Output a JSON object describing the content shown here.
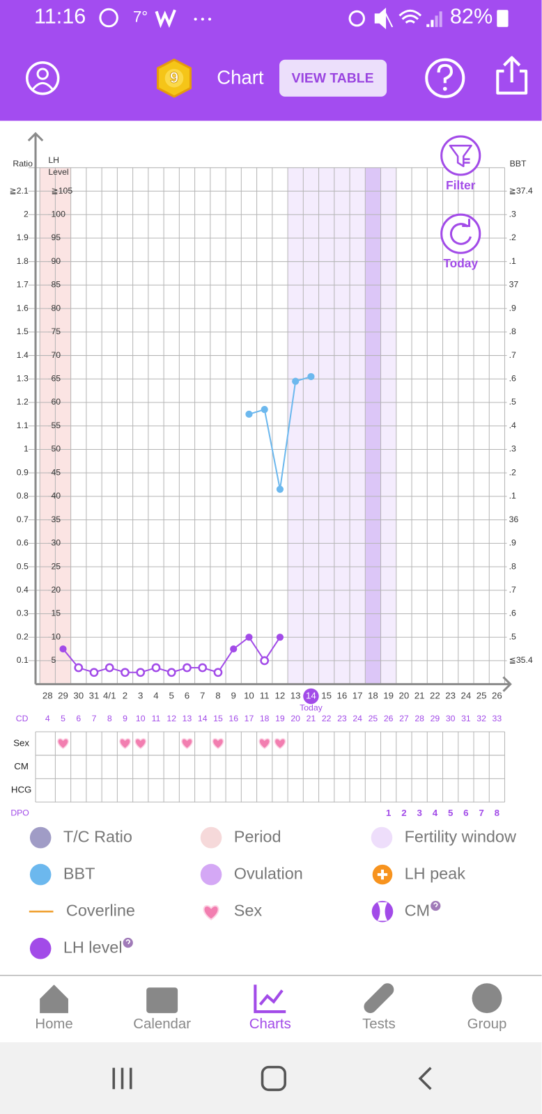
{
  "status": {
    "time": "11:16",
    "temp": "7°",
    "battery": "82%"
  },
  "header": {
    "badge": "9",
    "title": "Chart",
    "button": "VIEW TABLE"
  },
  "chart": {
    "type": "line",
    "buttons": [
      "Filter",
      "Today"
    ],
    "y_label": "Ratio",
    "y3_label": [
      "LH",
      "Level"
    ],
    "y2_label": "BBT",
    "ylim": [
      0,
      2.2
    ],
    "yticks": [
      {
        "value": 2.1,
        "label": "≧2.1"
      },
      2,
      1.9,
      1.8,
      1.7,
      1.6,
      1.5,
      1.4,
      1.3,
      1.2,
      1.1,
      1,
      0.9,
      0.8,
      0.7,
      0.6,
      0.5,
      0.4,
      0.3,
      0.2,
      0.1
    ],
    "y3lim": [
      0,
      110
    ],
    "y3ticks": [
      {
        "value": 105,
        "label": "≧105"
      },
      100,
      95,
      90,
      85,
      80,
      75,
      70,
      65,
      60,
      55,
      50,
      45,
      40,
      35,
      30,
      25,
      20,
      15,
      10,
      5
    ],
    "y2lim": [
      35.3,
      37.5
    ],
    "y2ticks": [
      {
        "value": 37.4,
        "label": "≧37.4"
      },
      {
        "value": 37.3,
        "label": ".3"
      },
      {
        "value": 37.2,
        "label": ".2"
      },
      {
        "value": 37.1,
        "label": ".1"
      },
      37,
      {
        "value": 36.9,
        "label": ".9"
      },
      {
        "value": 36.8,
        "label": ".8"
      },
      {
        "value": 36.7,
        "label": ".7"
      },
      {
        "value": 36.6,
        "label": ".6"
      },
      {
        "value": 36.5,
        "label": ".5"
      },
      {
        "value": 36.4,
        "label": ".4"
      },
      {
        "value": 36.3,
        "label": ".3"
      },
      {
        "value": 36.2,
        "label": ".2"
      },
      {
        "value": 36.1,
        "label": ".1"
      },
      36,
      {
        "value": 35.9,
        "label": ".9"
      },
      {
        "value": 35.8,
        "label": ".8"
      },
      {
        "value": 35.7,
        "label": ".7"
      },
      {
        "value": 35.6,
        "label": ".6"
      },
      {
        "value": 35.5,
        "label": ".5"
      },
      {
        "value": 35.4,
        "label": "≦35.4"
      }
    ],
    "categories": [
      "28",
      "29",
      "30",
      "31",
      "4/1",
      "2",
      "3",
      "4",
      "5",
      "6",
      "7",
      "8",
      "9",
      "10",
      "11",
      "12",
      "13",
      "14",
      "15",
      "16",
      "17",
      "18",
      "19",
      "20",
      "21",
      "22",
      "23",
      "24",
      "25",
      "26"
    ],
    "today_index": 17,
    "today_label": "Today",
    "period_columns": [
      0,
      1
    ],
    "fertile_columns": [
      16,
      17,
      18,
      19,
      20,
      21,
      22
    ],
    "ovulation_columns": [
      21
    ],
    "series": [
      {
        "name": "LH level",
        "color": "#a24be8",
        "axis": "y3",
        "hollow_points": [
          2,
          3,
          4,
          5,
          6,
          7,
          8,
          9,
          10,
          11,
          14
        ],
        "values": [
          null,
          7.5,
          3.5,
          2.5,
          3.5,
          2.5,
          2.5,
          3.5,
          2.5,
          3.5,
          3.5,
          2.5,
          7.5,
          10,
          5,
          10,
          null,
          null,
          null,
          null,
          null,
          null,
          null,
          null,
          null,
          null,
          null,
          null,
          null,
          null
        ]
      },
      {
        "name": "BBT",
        "color": "#6cb8ee",
        "axis": "y2",
        "values": [
          null,
          null,
          null,
          null,
          null,
          null,
          null,
          null,
          null,
          null,
          null,
          null,
          null,
          36.45,
          36.47,
          36.13,
          36.59,
          36.61,
          null,
          null,
          null,
          null,
          null,
          null,
          null,
          null,
          null,
          null,
          null,
          null
        ]
      }
    ],
    "cd_label": "CD",
    "cd": [
      4,
      5,
      6,
      7,
      8,
      9,
      10,
      11,
      12,
      13,
      14,
      15,
      16,
      17,
      18,
      19,
      20,
      21,
      22,
      23,
      24,
      25,
      26,
      27,
      28,
      29,
      30,
      31,
      32,
      33
    ],
    "rows": [
      {
        "label": "Sex",
        "days": [
          1,
          5,
          6,
          9,
          11,
          14,
          15
        ]
      },
      {
        "label": "CM",
        "days": []
      },
      {
        "label": "HCG",
        "days": []
      }
    ],
    "dpo_label": "DPO",
    "dpo": [
      null,
      null,
      null,
      null,
      null,
      null,
      null,
      null,
      null,
      null,
      null,
      null,
      null,
      null,
      null,
      null,
      null,
      null,
      null,
      null,
      null,
      null,
      1,
      2,
      3,
      4,
      5,
      6,
      7,
      8
    ]
  },
  "legend": [
    {
      "label": "T/C Ratio",
      "color": "#a09cc6",
      "symbol": "dot"
    },
    {
      "label": "Period",
      "color": "#f6d9da",
      "symbol": "dot"
    },
    {
      "label": "Fertility window",
      "color": "#eedefb",
      "symbol": "dot"
    },
    {
      "label": "BBT",
      "color": "#6cb8ee",
      "symbol": "dot"
    },
    {
      "label": "Ovulation",
      "color": "#d4a8f5",
      "symbol": "dot"
    },
    {
      "label": "LH peak",
      "color": "#f7931e",
      "symbol": "plus"
    },
    {
      "label": "Coverline",
      "color": "#f0a030",
      "symbol": "line"
    },
    {
      "label": "Sex",
      "color": "#f27eb0",
      "symbol": "heart"
    },
    {
      "label": "CM",
      "color": "#a24be8",
      "symbol": "cm",
      "help": true
    },
    {
      "label": "LH level",
      "color": "#a24be8",
      "symbol": "dot",
      "help": true
    }
  ],
  "nav": {
    "active_index": 2,
    "items": [
      "Home",
      "Calendar",
      "Charts",
      "Tests",
      "Group"
    ]
  }
}
